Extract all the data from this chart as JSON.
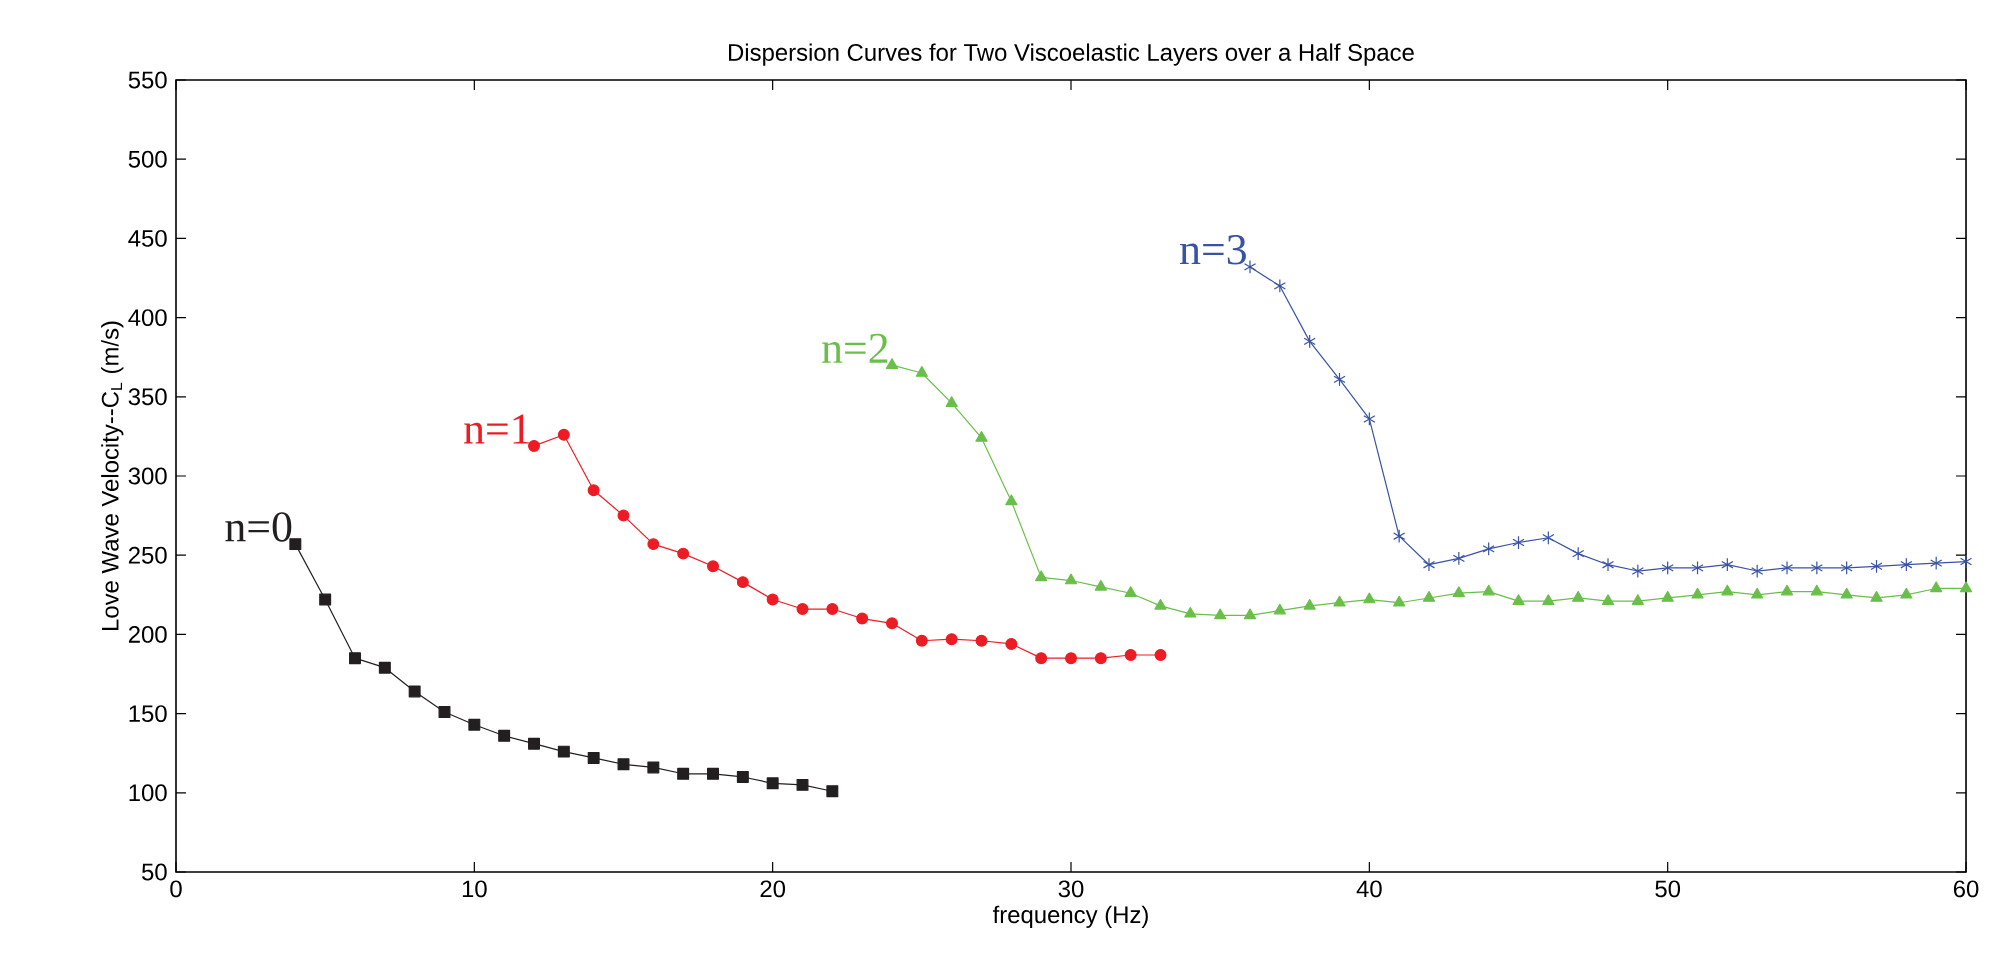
{
  "chart_data": {
    "type": "line",
    "title": "Dispersion Curves for Two Viscoelastic Layers over a Half Space",
    "xlabel": "frequency (Hz)",
    "ylabel": "Love Wave Velocity--C$_{L}$ (m/s)",
    "xlim": [
      0,
      60
    ],
    "xticks": [
      0,
      10,
      20,
      30,
      40,
      50,
      60
    ],
    "ylim": [
      50,
      550
    ],
    "yticks": [
      50,
      100,
      150,
      200,
      250,
      300,
      350,
      400,
      450,
      500,
      550
    ],
    "grid": false,
    "legend": false,
    "line_style": "solid",
    "series": [
      {
        "name": "n=0",
        "color": "#231f20",
        "marker": "square",
        "x": [
          4,
          5,
          6,
          7,
          8,
          9,
          10,
          11,
          12,
          13,
          14,
          15,
          16,
          17,
          18,
          19,
          20,
          21,
          22
        ],
        "values": [
          257,
          222,
          185,
          179,
          164,
          151,
          143,
          136,
          131,
          126,
          122,
          118,
          116,
          112,
          112,
          110,
          106,
          105,
          101
        ]
      },
      {
        "name": "n=1",
        "color": "#ed1c24",
        "marker": "circle",
        "x": [
          12,
          13,
          14,
          15,
          16,
          17,
          18,
          19,
          20,
          21,
          22,
          23,
          24,
          25,
          26,
          27,
          28,
          29,
          30,
          31,
          32,
          33
        ],
        "values": [
          319,
          326,
          291,
          275,
          257,
          251,
          243,
          233,
          222,
          216,
          216,
          210,
          207,
          196,
          197,
          196,
          194,
          185,
          185,
          185,
          187,
          187
        ]
      },
      {
        "name": "n=2",
        "color": "#6abf4b",
        "marker": "triangle",
        "x": [
          24,
          25,
          26,
          27,
          28,
          29,
          30,
          31,
          32,
          33,
          34,
          35,
          36,
          37,
          38,
          39,
          40,
          41,
          42,
          43,
          44,
          45,
          46,
          47,
          48,
          49,
          50,
          51,
          52,
          53,
          54,
          55,
          56,
          57,
          58,
          59,
          60
        ],
        "values": [
          370,
          365,
          346,
          324,
          284,
          236,
          234,
          230,
          226,
          218,
          213,
          212,
          212,
          215,
          218,
          220,
          222,
          220,
          223,
          226,
          227,
          221,
          221,
          223,
          221,
          221,
          223,
          225,
          227,
          225,
          227,
          227,
          225,
          223,
          225,
          229,
          229
        ]
      },
      {
        "name": "n=3",
        "color": "#3953a4",
        "marker": "cross",
        "x": [
          36,
          37,
          38,
          39,
          40,
          41,
          42,
          43,
          44,
          45,
          46,
          47,
          48,
          49,
          50,
          51,
          52,
          53,
          54,
          55,
          56,
          57,
          58,
          59,
          60
        ],
        "values": [
          432,
          420,
          385,
          361,
          336,
          262,
          244,
          248,
          254,
          258,
          261,
          251,
          244,
          240,
          242,
          242,
          244,
          240,
          242,
          242,
          242,
          243,
          244,
          245,
          246
        ]
      }
    ]
  }
}
